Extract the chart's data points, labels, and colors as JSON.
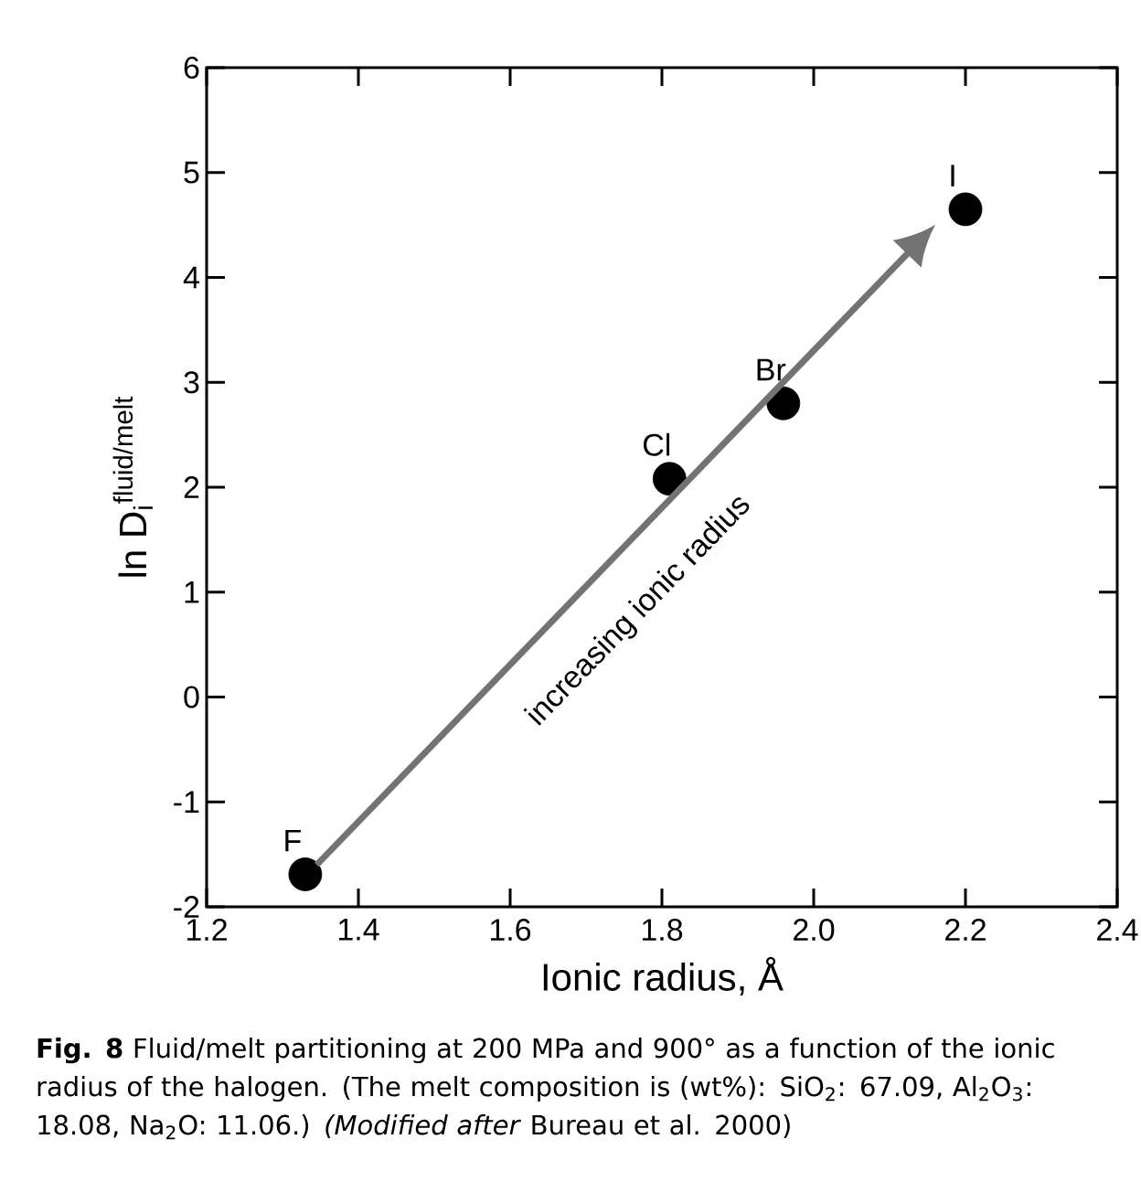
{
  "chart_data": {
    "type": "scatter",
    "xlabel": "Ionic radius, Å",
    "ylabel": "ln D$_{i}$$^{fluid/melt}$",
    "xlim": [
      1.2,
      2.4
    ],
    "ylim": [
      -2,
      6
    ],
    "xticks": [
      1.2,
      1.4,
      1.6,
      1.8,
      {
        "value": 2.0,
        "label": "2.0"
      },
      2.2,
      2.4
    ],
    "yticks": [
      -2,
      -1,
      0,
      1,
      2,
      3,
      4,
      5,
      6
    ],
    "marker": "circle",
    "series": [
      {
        "name": "F",
        "color": "#000000",
        "x": [
          1.33
        ],
        "values": [
          -1.69
        ]
      },
      {
        "name": "Cl",
        "color": "#000000",
        "x": [
          1.81
        ],
        "values": [
          2.08
        ]
      },
      {
        "name": "Br",
        "color": "#000000",
        "x": [
          1.96
        ],
        "values": [
          2.8
        ]
      },
      {
        "name": "I",
        "color": "#000000",
        "x": [
          2.2
        ],
        "values": [
          4.65
        ]
      }
    ],
    "annotations": [
      "increasing ionic radius",
      "**Fig. 8** Fluid/melt partitioning at 200 MPa and 900° as a function of the ionic radius of the halogen. (The melt composition is (wt%): SiO$_{2}$: 67.09, Al$_{2}$O$_{3}$: 18.08, Na$_{2}$O: 11.06.) *(Modified after* Bureau et al. 2000)"
    ]
  }
}
